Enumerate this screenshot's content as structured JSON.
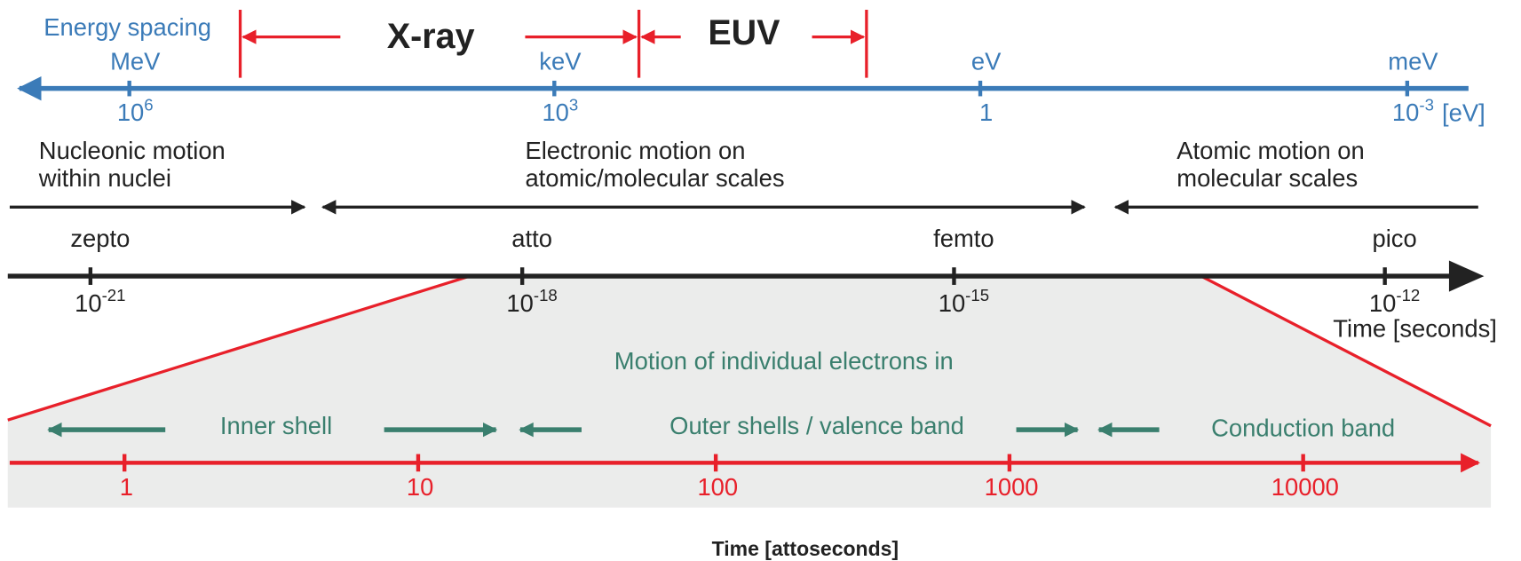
{
  "energy_axis": {
    "label": "Energy spacing",
    "unit": "[eV]",
    "ticks": [
      {
        "name": "MeV",
        "base": "10",
        "exponent": "6"
      },
      {
        "name": "keV",
        "base": "10",
        "exponent": "3"
      },
      {
        "name": "eV",
        "base": "1",
        "exponent": ""
      },
      {
        "name": "meV",
        "base": "10",
        "exponent": "-3"
      }
    ]
  },
  "bands": {
    "xray": "X-ray",
    "euv": "EUV"
  },
  "regions": [
    {
      "line1": "Nucleonic motion",
      "line2": "within nuclei"
    },
    {
      "line1": "Electronic motion on",
      "line2": "atomic/molecular scales"
    },
    {
      "line1": "Atomic motion on",
      "line2": "molecular scales"
    }
  ],
  "time_axis": {
    "label": "Time [seconds]",
    "ticks": [
      {
        "name": "zepto",
        "base": "10",
        "exponent": "-21"
      },
      {
        "name": "atto",
        "base": "10",
        "exponent": "-18"
      },
      {
        "name": "femto",
        "base": "10",
        "exponent": "-15"
      },
      {
        "name": "pico",
        "base": "10",
        "exponent": "-12"
      }
    ]
  },
  "zoom": {
    "title": "Motion of individual electrons in",
    "shells": [
      "Inner shell",
      "Outer shells / valence band",
      "Conduction band"
    ],
    "ticks": [
      "1",
      "10",
      "100",
      "1000",
      "10000"
    ],
    "axis_label": "Time [attoseconds]"
  }
}
